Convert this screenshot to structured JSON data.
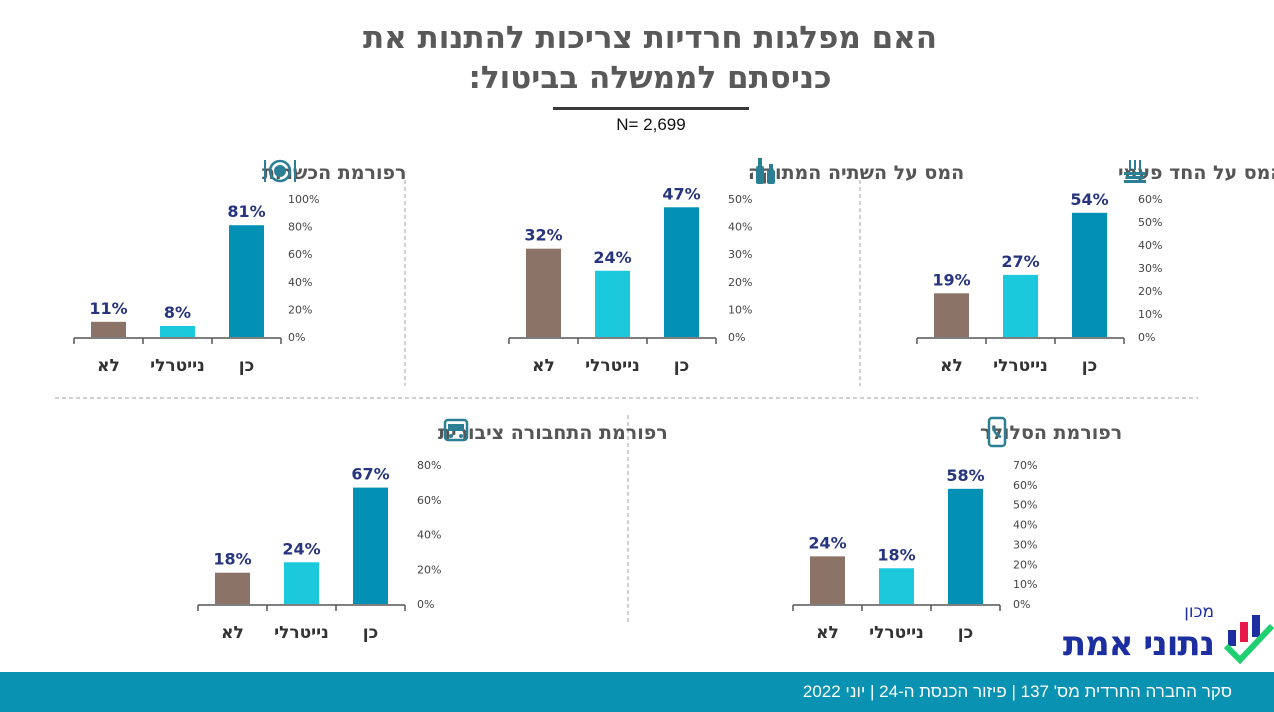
{
  "header": {
    "title_line1": "האם מפלגות חרדיות צריכות להתנות את",
    "title_line2": "כניסתם לממשלה בביטול:",
    "sample": "N= 2,699"
  },
  "colors": {
    "no": "#8b7368",
    "neutral": "#1bc8dc",
    "yes": "#0291b5",
    "value_label": "#27357f",
    "footer": "#0a92b2"
  },
  "chart_data": [
    {
      "type": "bar",
      "title": "המס על החד פעמי",
      "icon": "plates-fork-icon",
      "categories": [
        "לא",
        "נייטרלי",
        "כן"
      ],
      "values": [
        19,
        27,
        54
      ],
      "ticks": [
        "0%",
        "10%",
        "20%",
        "30%",
        "40%",
        "50%",
        "60%"
      ],
      "ylim": [
        0,
        60
      ],
      "value_labels": [
        "19%",
        "27%",
        "54%"
      ]
    },
    {
      "type": "bar",
      "title": "המס על השתיה המתוקה",
      "icon": "bottles-icon",
      "categories": [
        "לא",
        "נייטרלי",
        "כן"
      ],
      "values": [
        32,
        24,
        47
      ],
      "ticks": [
        "0%",
        "10%",
        "20%",
        "30%",
        "40%",
        "50%"
      ],
      "ylim": [
        0,
        50
      ],
      "value_labels": [
        "32%",
        "24%",
        "47%"
      ]
    },
    {
      "type": "bar",
      "title": "רפורמת הכשרות",
      "icon": "plate-cutlery-icon",
      "categories": [
        "לא",
        "נייטרלי",
        "כן"
      ],
      "values": [
        11,
        8,
        81
      ],
      "ticks": [
        "0%",
        "20%",
        "40%",
        "60%",
        "80%",
        "100%"
      ],
      "ylim": [
        0,
        100
      ],
      "value_labels": [
        "11%",
        "8%",
        "81%"
      ]
    },
    {
      "type": "bar",
      "title": "רפורמת התחבורה ציבורית",
      "icon": "bus-icon",
      "categories": [
        "לא",
        "נייטרלי",
        "כן"
      ],
      "values": [
        18,
        24,
        67
      ],
      "ticks": [
        "0%",
        "20%",
        "40%",
        "60%",
        "80%"
      ],
      "ylim": [
        0,
        80
      ],
      "value_labels": [
        "18%",
        "24%",
        "67%"
      ]
    },
    {
      "type": "bar",
      "title": "רפורמת הסלולר",
      "icon": "mobile-phone-icon",
      "categories": [
        "לא",
        "נייטרלי",
        "כן"
      ],
      "values": [
        24,
        18,
        58
      ],
      "ticks": [
        "0%",
        "10%",
        "20%",
        "30%",
        "40%",
        "50%",
        "60%",
        "70%"
      ],
      "ylim": [
        0,
        70
      ],
      "value_labels": [
        "24%",
        "18%",
        "58%"
      ]
    }
  ],
  "logo": {
    "small": "מכון",
    "big": "נתוני אמת"
  },
  "footer": {
    "text": "סקר החברה החרדית מס' 137 | פיזור הכנסת ה-24 | יוני 2022"
  }
}
